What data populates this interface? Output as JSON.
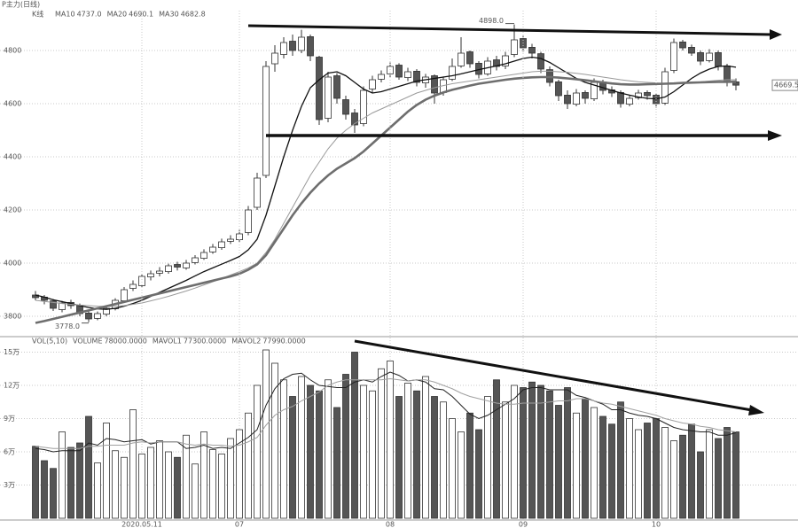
{
  "chart_data": [
    {
      "type": "candlestick",
      "title": "P主力(日线)",
      "indicator": "K线",
      "ylim": [
        3730,
        4950
      ],
      "yticks": [
        4800,
        4600,
        4400,
        4200,
        4000,
        3800
      ],
      "grid": true,
      "up_color": "#ffffff",
      "down_color": "#555555",
      "open": [
        3880,
        3872,
        3858,
        3825,
        3852,
        3842,
        3812,
        3792,
        3808,
        3828,
        3858,
        3905,
        3915,
        3948,
        3962,
        3968,
        3995,
        3982,
        4002,
        4018,
        4042,
        4058,
        4082,
        4088,
        4115,
        4210,
        4330,
        4750,
        4785,
        4835,
        4800,
        4852,
        4775,
        4545,
        4705,
        4615,
        4565,
        4525,
        4655,
        4692,
        4712,
        4745,
        4698,
        4722,
        4678,
        4705,
        4642,
        4692,
        4742,
        4795,
        4752,
        4712,
        4765,
        4742,
        4785,
        4845,
        4812,
        4788,
        4728,
        4682,
        4632,
        4598,
        4642,
        4618,
        4682,
        4652,
        4642,
        4598,
        4622,
        4642,
        4632,
        4602,
        4725,
        4832,
        4812,
        4792,
        4762,
        4792,
        4742,
        4682
      ],
      "high": [
        3895,
        3880,
        3865,
        3858,
        3862,
        3848,
        3820,
        3818,
        3838,
        3868,
        3910,
        3935,
        3960,
        3972,
        3985,
        3998,
        4005,
        4012,
        4030,
        4052,
        4072,
        4092,
        4105,
        4125,
        4215,
        4340,
        4760,
        4820,
        4850,
        4860,
        4878,
        4860,
        4780,
        4720,
        4715,
        4630,
        4580,
        4665,
        4705,
        4725,
        4755,
        4752,
        4735,
        4730,
        4712,
        4710,
        4702,
        4770,
        4850,
        4800,
        4760,
        4775,
        4780,
        4795,
        4898,
        4855,
        4825,
        4795,
        4740,
        4690,
        4650,
        4655,
        4650,
        4695,
        4690,
        4665,
        4650,
        4632,
        4652,
        4650,
        4640,
        4735,
        4845,
        4840,
        4822,
        4800,
        4805,
        4800,
        4750,
        4695
      ],
      "low": [
        3860,
        3845,
        3820,
        3815,
        3828,
        3800,
        3778,
        3785,
        3800,
        3822,
        3850,
        3895,
        3908,
        3935,
        3950,
        3960,
        3972,
        3975,
        3995,
        4012,
        4035,
        4050,
        4072,
        4080,
        4105,
        4200,
        4320,
        4720,
        4770,
        4780,
        4790,
        4760,
        4520,
        4530,
        4600,
        4540,
        4490,
        4515,
        4640,
        4680,
        4700,
        4690,
        4685,
        4665,
        4660,
        4600,
        4630,
        4685,
        4735,
        4735,
        4695,
        4705,
        4725,
        4730,
        4775,
        4795,
        4770,
        4715,
        4665,
        4610,
        4580,
        4590,
        4600,
        4610,
        4635,
        4625,
        4585,
        4590,
        4615,
        4615,
        4585,
        4595,
        4715,
        4800,
        4780,
        4745,
        4755,
        4725,
        4665,
        4650
      ],
      "close": [
        3870,
        3860,
        3830,
        3850,
        3840,
        3810,
        3790,
        3810,
        3830,
        3860,
        3900,
        3920,
        3950,
        3960,
        3970,
        3990,
        3985,
        4000,
        4020,
        4040,
        4060,
        4080,
        4090,
        4110,
        4200,
        4320,
        4740,
        4790,
        4830,
        4800,
        4850,
        4780,
        4540,
        4700,
        4620,
        4560,
        4520,
        4650,
        4690,
        4710,
        4740,
        4700,
        4720,
        4680,
        4700,
        4640,
        4690,
        4740,
        4790,
        4750,
        4710,
        4760,
        4740,
        4780,
        4840,
        4810,
        4790,
        4730,
        4680,
        4630,
        4600,
        4640,
        4620,
        4680,
        4650,
        4640,
        4600,
        4620,
        4640,
        4630,
        4600,
        4720,
        4830,
        4810,
        4790,
        4760,
        4790,
        4740,
        4680,
        4669.5
      ],
      "high_label": "4898.0",
      "low_label": "3778.0",
      "last_label": "4669.5",
      "series": [
        {
          "name": "MA10",
          "value_label": "4737.0",
          "color": "#111111",
          "values": [
            3880,
            3872,
            3862,
            3855,
            3848,
            3840,
            3833,
            3828,
            3826,
            3830,
            3838,
            3848,
            3860,
            3875,
            3890,
            3905,
            3920,
            3935,
            3952,
            3968,
            3982,
            3996,
            4010,
            4025,
            4050,
            4090,
            4180,
            4290,
            4400,
            4500,
            4590,
            4660,
            4690,
            4715,
            4720,
            4705,
            4680,
            4655,
            4640,
            4645,
            4655,
            4665,
            4675,
            4685,
            4690,
            4695,
            4700,
            4705,
            4712,
            4720,
            4728,
            4735,
            4742,
            4750,
            4760,
            4770,
            4775,
            4770,
            4755,
            4735,
            4715,
            4695,
            4680,
            4670,
            4660,
            4650,
            4640,
            4632,
            4625,
            4620,
            4618,
            4625,
            4645,
            4670,
            4695,
            4715,
            4730,
            4740,
            4742,
            4737
          ]
        },
        {
          "name": "MA20",
          "value_label": "4690.1",
          "color": "#9a9a9a",
          "values": [
            3860,
            3856,
            3852,
            3848,
            3845,
            3842,
            3840,
            3838,
            3837,
            3838,
            3840,
            3845,
            3850,
            3858,
            3866,
            3875,
            3885,
            3895,
            3906,
            3918,
            3930,
            3942,
            3955,
            3968,
            3982,
            4000,
            4040,
            4090,
            4150,
            4210,
            4270,
            4330,
            4380,
            4430,
            4470,
            4500,
            4525,
            4545,
            4565,
            4580,
            4595,
            4610,
            4625,
            4640,
            4650,
            4660,
            4668,
            4675,
            4680,
            4685,
            4690,
            4695,
            4700,
            4705,
            4710,
            4715,
            4720,
            4722,
            4722,
            4720,
            4718,
            4714,
            4710,
            4705,
            4700,
            4695,
            4690,
            4686,
            4682,
            4680,
            4678,
            4676,
            4676,
            4678,
            4680,
            4682,
            4685,
            4688,
            4690,
            4690.1
          ]
        },
        {
          "name": "MA30",
          "value_label": "4682.8",
          "color": "#6e6e6e",
          "values": [
            3775,
            3782,
            3790,
            3798,
            3806,
            3814,
            3822,
            3830,
            3838,
            3846,
            3854,
            3862,
            3870,
            3878,
            3886,
            3894,
            3902,
            3910,
            3918,
            3926,
            3934,
            3942,
            3950,
            3960,
            3975,
            3995,
            4030,
            4080,
            4130,
            4180,
            4225,
            4265,
            4300,
            4330,
            4355,
            4375,
            4395,
            4420,
            4450,
            4480,
            4510,
            4540,
            4570,
            4595,
            4615,
            4630,
            4642,
            4652,
            4660,
            4668,
            4675,
            4680,
            4685,
            4690,
            4694,
            4697,
            4699,
            4700,
            4700,
            4698,
            4695,
            4692,
            4688,
            4684,
            4680,
            4676,
            4673,
            4672,
            4672,
            4673,
            4674,
            4675,
            4676,
            4678,
            4679,
            4680,
            4681,
            4682,
            4682,
            4682.8
          ]
        }
      ]
    },
    {
      "type": "bar",
      "title": "VOL(5,10)",
      "ylim": [
        0,
        15.6
      ],
      "yticks": [
        {
          "value": 15,
          "label": "15万"
        },
        {
          "value": 12,
          "label": "12万"
        },
        {
          "value": 9,
          "label": "9万"
        },
        {
          "value": 6,
          "label": "6万"
        },
        {
          "value": 3,
          "label": "3万"
        }
      ],
      "grid": true,
      "categories": [
        null,
        null,
        null,
        null,
        null,
        null,
        null,
        null,
        null,
        null,
        null,
        null,
        "2020.05.11",
        null,
        null,
        null,
        null,
        null,
        null,
        null,
        null,
        null,
        null,
        "07",
        null,
        null,
        null,
        null,
        null,
        null,
        null,
        null,
        null,
        null,
        null,
        null,
        null,
        null,
        null,
        null,
        "08",
        null,
        null,
        null,
        null,
        null,
        null,
        null,
        null,
        null,
        null,
        null,
        null,
        null,
        null,
        "09",
        null,
        null,
        null,
        null,
        null,
        null,
        null,
        null,
        null,
        null,
        null,
        null,
        null,
        null,
        "10",
        null,
        null,
        null,
        null,
        null,
        null,
        null,
        null,
        null
      ],
      "name": "VOLUME",
      "value_label": "78000.0000",
      "values": [
        6.5,
        5.2,
        4.5,
        7.8,
        6.4,
        6.8,
        9.2,
        5.0,
        8.6,
        6.1,
        5.5,
        9.8,
        5.8,
        6.4,
        7.0,
        6.0,
        5.5,
        7.5,
        4.9,
        7.8,
        6.2,
        5.8,
        7.2,
        8.0,
        9.5,
        12.0,
        15.2,
        14.0,
        12.5,
        11.0,
        12.8,
        12.0,
        11.5,
        12.5,
        10.0,
        13.0,
        15.0,
        12.0,
        11.5,
        13.5,
        14.2,
        11.0,
        12.2,
        11.5,
        12.8,
        11.0,
        10.5,
        9.0,
        7.8,
        9.5,
        8.0,
        11.0,
        12.5,
        10.5,
        12.0,
        11.8,
        12.3,
        12.0,
        11.5,
        10.2,
        11.8,
        9.5,
        10.8,
        10.0,
        9.2,
        8.5,
        10.5,
        9.0,
        8.0,
        8.6,
        9.0,
        8.2,
        7.0,
        7.5,
        8.5,
        6.0,
        8.0,
        7.2,
        8.2,
        7.8
      ],
      "series": [
        {
          "name": "MAVOL1",
          "value_label": "77300.0000",
          "color": "#222222",
          "values": [
            6.3,
            6.2,
            6.0,
            6.1,
            6.1,
            6.1,
            6.8,
            6.6,
            7.2,
            7.1,
            6.9,
            7.0,
            7.1,
            6.7,
            6.9,
            6.9,
            6.9,
            6.3,
            6.4,
            6.6,
            6.3,
            6.4,
            6.3,
            6.8,
            7.3,
            8.0,
            10.2,
            11.7,
            12.6,
            13.0,
            13.1,
            12.5,
            12.0,
            11.9,
            11.8,
            11.8,
            12.3,
            12.5,
            12.3,
            12.8,
            13.2,
            12.9,
            12.4,
            12.5,
            12.3,
            11.7,
            11.6,
            11.0,
            10.2,
            9.4,
            9.0,
            9.3,
            9.8,
            10.3,
            10.8,
            11.6,
            11.8,
            11.8,
            11.6,
            11.6,
            11.6,
            11.1,
            10.9,
            10.6,
            10.3,
            9.8,
            9.8,
            9.5,
            9.3,
            9.2,
            9.0,
            8.6,
            8.2,
            8.0,
            7.9,
            7.8,
            7.8,
            7.5,
            7.5,
            7.73
          ]
        },
        {
          "name": "MAVOL2",
          "value_label": "77990.0000",
          "color": "#a0a0a0",
          "values": [
            6.5,
            6.4,
            6.3,
            6.3,
            6.3,
            6.3,
            6.5,
            6.5,
            6.6,
            6.6,
            6.6,
            6.8,
            6.9,
            6.8,
            6.9,
            6.9,
            6.9,
            6.7,
            6.6,
            6.7,
            6.6,
            6.6,
            6.5,
            6.6,
            6.9,
            7.3,
            8.4,
            9.3,
            9.8,
            10.1,
            10.6,
            11.0,
            11.4,
            12.0,
            12.3,
            12.5,
            12.5,
            12.5,
            12.5,
            12.5,
            12.6,
            12.5,
            12.4,
            12.5,
            12.5,
            12.3,
            12.0,
            11.7,
            11.3,
            11.0,
            10.8,
            10.6,
            10.4,
            10.3,
            10.3,
            10.4,
            10.4,
            10.4,
            10.5,
            10.6,
            10.6,
            10.8,
            10.8,
            10.6,
            10.4,
            10.3,
            10.1,
            9.9,
            9.7,
            9.5,
            9.3,
            9.0,
            8.8,
            8.6,
            8.5,
            8.3,
            8.2,
            8.0,
            7.9,
            7.799
          ]
        }
      ]
    }
  ]
}
